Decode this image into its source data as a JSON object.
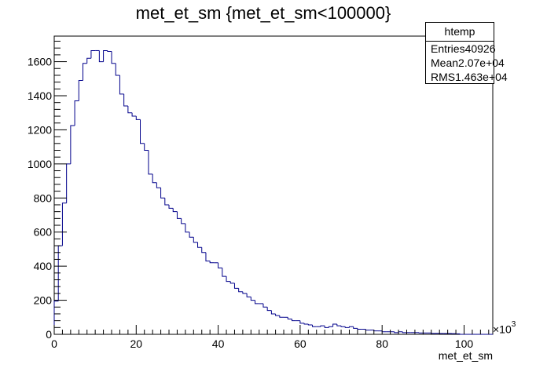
{
  "title": "met_et_sm {met_et_sm<100000}",
  "stats": {
    "name": "htemp",
    "rows": [
      {
        "label": "Entries",
        "value": "40926"
      },
      {
        "label": "Mean",
        "value": "2.07e+04"
      },
      {
        "label": "RMS",
        "value": "1.463e+04"
      }
    ]
  },
  "chart_data": {
    "type": "bar",
    "histogram": true,
    "line_color": "#00008b",
    "xlabel": "met_et_sm",
    "x_exponent_prefix": "×10",
    "x_exponent_power": "3",
    "xlim": [
      0,
      107
    ],
    "ylim": [
      0,
      1750
    ],
    "bin_width": 1,
    "x_ticks": [
      0,
      20,
      40,
      60,
      80,
      100
    ],
    "y_ticks": [
      0,
      200,
      400,
      600,
      800,
      1000,
      1200,
      1400,
      1600
    ],
    "values": [
      195,
      520,
      770,
      1000,
      1225,
      1370,
      1490,
      1590,
      1620,
      1665,
      1665,
      1600,
      1665,
      1660,
      1590,
      1520,
      1410,
      1340,
      1300,
      1280,
      1260,
      1120,
      1080,
      940,
      890,
      860,
      800,
      760,
      740,
      720,
      680,
      650,
      600,
      570,
      540,
      510,
      480,
      430,
      420,
      420,
      390,
      340,
      310,
      300,
      270,
      250,
      240,
      220,
      200,
      180,
      180,
      160,
      140,
      120,
      110,
      100,
      100,
      90,
      80,
      80,
      65,
      60,
      55,
      45,
      45,
      50,
      40,
      45,
      60,
      50,
      45,
      40,
      45,
      35,
      30,
      30,
      25,
      25,
      20,
      20,
      15,
      15,
      15,
      10,
      15,
      10,
      10,
      10,
      10,
      8,
      8,
      8,
      6,
      6,
      5,
      5,
      5,
      4,
      3,
      0,
      0,
      0,
      0,
      0,
      0,
      0,
      0
    ]
  }
}
